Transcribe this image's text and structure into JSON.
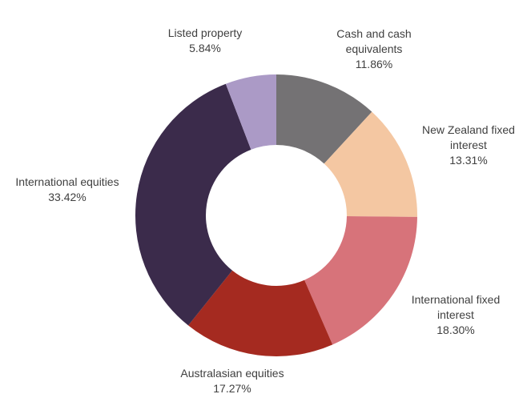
{
  "page": {
    "background_color": "#ffffff",
    "text_color": "#404040"
  },
  "chart_data": {
    "type": "pie",
    "subtype": "donut",
    "title": "",
    "inner_radius_ratio": 0.5,
    "start_angle": "12 o'clock",
    "direction": "clockwise",
    "legend_position": "none",
    "labels_style": "outside, category name with percentage value",
    "slices": [
      {
        "label": "Cash and cash equivalents",
        "value": 11.86,
        "color": "#747274"
      },
      {
        "label": "New Zealand fixed interest",
        "value": 13.31,
        "color": "#F4C7A2"
      },
      {
        "label": "International fixed interest",
        "value": 18.3,
        "color": "#D7737A"
      },
      {
        "label": "Australasian equities",
        "value": 17.27,
        "color": "#A52A20"
      },
      {
        "label": "International equities",
        "value": 33.42,
        "color": "#3B2B4B"
      },
      {
        "label": "Listed property",
        "value": 5.84,
        "color": "#AB9AC6"
      }
    ]
  },
  "labels": [
    {
      "name": "Cash and cash equivalents",
      "pct": "11.86%"
    },
    {
      "name": "New Zealand fixed interest",
      "pct": "13.31%"
    },
    {
      "name": "International fixed interest",
      "pct": "18.30%"
    },
    {
      "name": "Australasian equities",
      "pct": "17.27%"
    },
    {
      "name": "International equities",
      "pct": "33.42%"
    },
    {
      "name": "Listed property",
      "pct": "5.84%"
    }
  ]
}
